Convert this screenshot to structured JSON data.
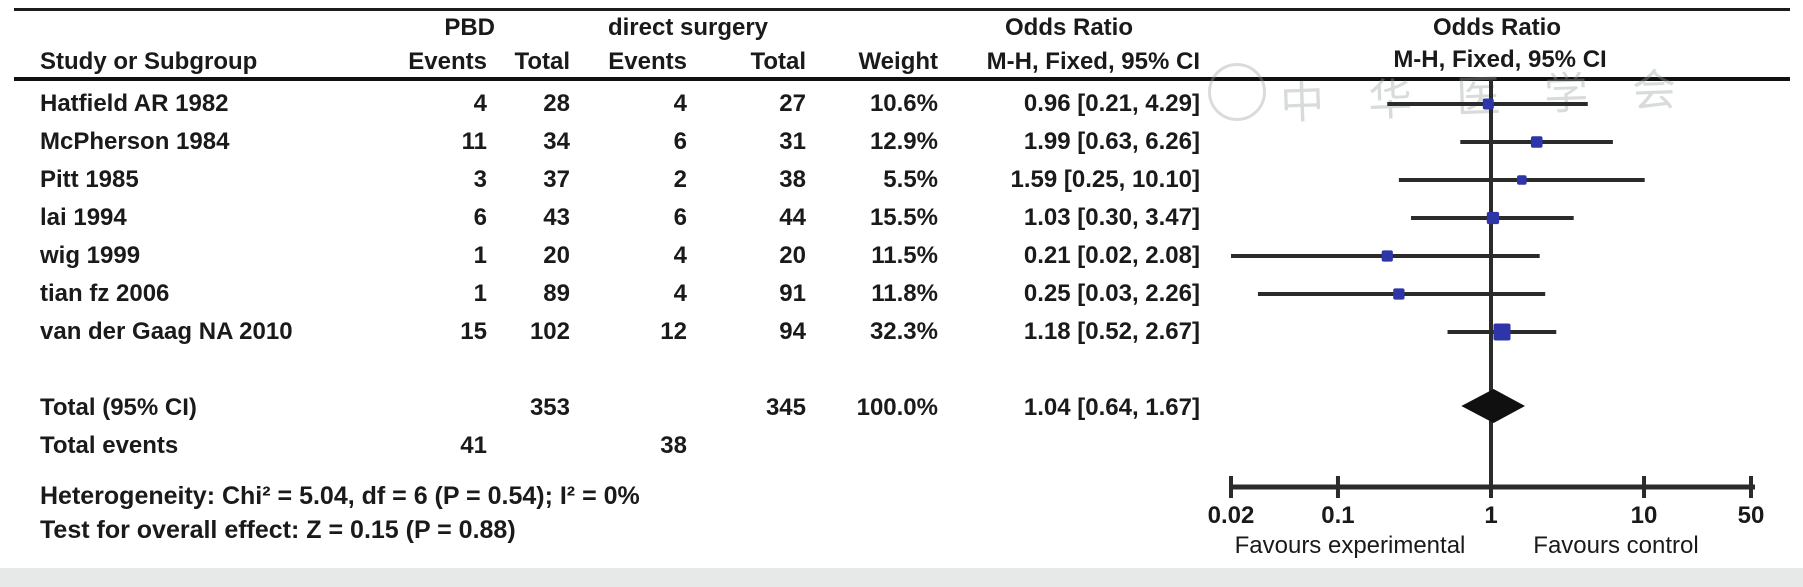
{
  "table": {
    "group_headers": {
      "pbd": "PBD",
      "direct_surgery": "direct surgery",
      "odds_ratio": "Odds Ratio"
    },
    "columns": {
      "study": "Study or Subgroup",
      "events": "Events",
      "total": "Total",
      "weight": "Weight",
      "mh_ci": "M-H, Fixed, 95% CI"
    },
    "rows": [
      {
        "study": "Hatfield AR 1982",
        "pbd_events": "4",
        "pbd_total": "28",
        "ds_events": "4",
        "ds_total": "27",
        "weight": "10.6%",
        "or_ci": "0.96 [0.21, 4.29]"
      },
      {
        "study": "McPherson 1984",
        "pbd_events": "11",
        "pbd_total": "34",
        "ds_events": "6",
        "ds_total": "31",
        "weight": "12.9%",
        "or_ci": "1.99 [0.63, 6.26]"
      },
      {
        "study": "Pitt 1985",
        "pbd_events": "3",
        "pbd_total": "37",
        "ds_events": "2",
        "ds_total": "38",
        "weight": "5.5%",
        "or_ci": "1.59 [0.25, 10.10]"
      },
      {
        "study": "lai 1994",
        "pbd_events": "6",
        "pbd_total": "43",
        "ds_events": "6",
        "ds_total": "44",
        "weight": "15.5%",
        "or_ci": "1.03 [0.30, 3.47]"
      },
      {
        "study": "wig 1999",
        "pbd_events": "1",
        "pbd_total": "20",
        "ds_events": "4",
        "ds_total": "20",
        "weight": "11.5%",
        "or_ci": "0.21 [0.02, 2.08]"
      },
      {
        "study": "tian fz 2006",
        "pbd_events": "1",
        "pbd_total": "89",
        "ds_events": "4",
        "ds_total": "91",
        "weight": "11.8%",
        "or_ci": "0.25 [0.03, 2.26]"
      },
      {
        "study": "van der Gaag NA 2010",
        "pbd_events": "15",
        "pbd_total": "102",
        "ds_events": "12",
        "ds_total": "94",
        "weight": "32.3%",
        "or_ci": "1.18 [0.52, 2.67]"
      }
    ],
    "total_row": {
      "label": "Total (95% CI)",
      "pbd_total": "353",
      "ds_total": "345",
      "weight": "100.0%",
      "or_ci": "1.04 [0.64, 1.67]"
    },
    "total_events": {
      "label": "Total events",
      "pbd": "41",
      "ds": "38"
    },
    "heterogeneity": "Heterogeneity: Chi² = 5.04, df = 6 (P = 0.54); I² = 0%",
    "overall_effect": "Test for overall effect: Z = 0.15 (P = 0.88)"
  },
  "plot": {
    "header_line1": "Odds Ratio",
    "header_line2": "M-H, Fixed, 95% CI",
    "marker_color": "#2e35a8",
    "line_color": "#2b2b2b",
    "diamond_color": "#101010"
  },
  "watermark": {
    "text": "中华医学会"
  },
  "chart_data": {
    "type": "forest_plot",
    "effect_measure": "Odds Ratio, M-H, Fixed, 95% CI",
    "x_scale": "log",
    "x_range": [
      0.02,
      50
    ],
    "x_ticks": [
      0.02,
      0.1,
      1,
      10,
      50
    ],
    "x_tick_labels": [
      "0.02",
      "0.1",
      "1",
      "10",
      "50"
    ],
    "null_line": 1,
    "studies": [
      {
        "name": "Hatfield AR 1982",
        "or": 0.96,
        "ci_low": 0.21,
        "ci_high": 4.29,
        "weight_pct": 10.6
      },
      {
        "name": "McPherson 1984",
        "or": 1.99,
        "ci_low": 0.63,
        "ci_high": 6.26,
        "weight_pct": 12.9
      },
      {
        "name": "Pitt 1985",
        "or": 1.59,
        "ci_low": 0.25,
        "ci_high": 10.1,
        "weight_pct": 5.5
      },
      {
        "name": "lai 1994",
        "or": 1.03,
        "ci_low": 0.3,
        "ci_high": 3.47,
        "weight_pct": 15.5
      },
      {
        "name": "wig 1999",
        "or": 0.21,
        "ci_low": 0.02,
        "ci_high": 2.08,
        "weight_pct": 11.5
      },
      {
        "name": "tian fz 2006",
        "or": 0.25,
        "ci_low": 0.03,
        "ci_high": 2.26,
        "weight_pct": 11.8
      },
      {
        "name": "van der Gaag NA 2010",
        "or": 1.18,
        "ci_low": 0.52,
        "ci_high": 2.67,
        "weight_pct": 32.3
      }
    ],
    "total": {
      "label": "Total (95% CI)",
      "or": 1.04,
      "ci_low": 0.64,
      "ci_high": 1.67
    },
    "xlabel_left": "Favours experimental",
    "xlabel_right": "Favours control"
  }
}
